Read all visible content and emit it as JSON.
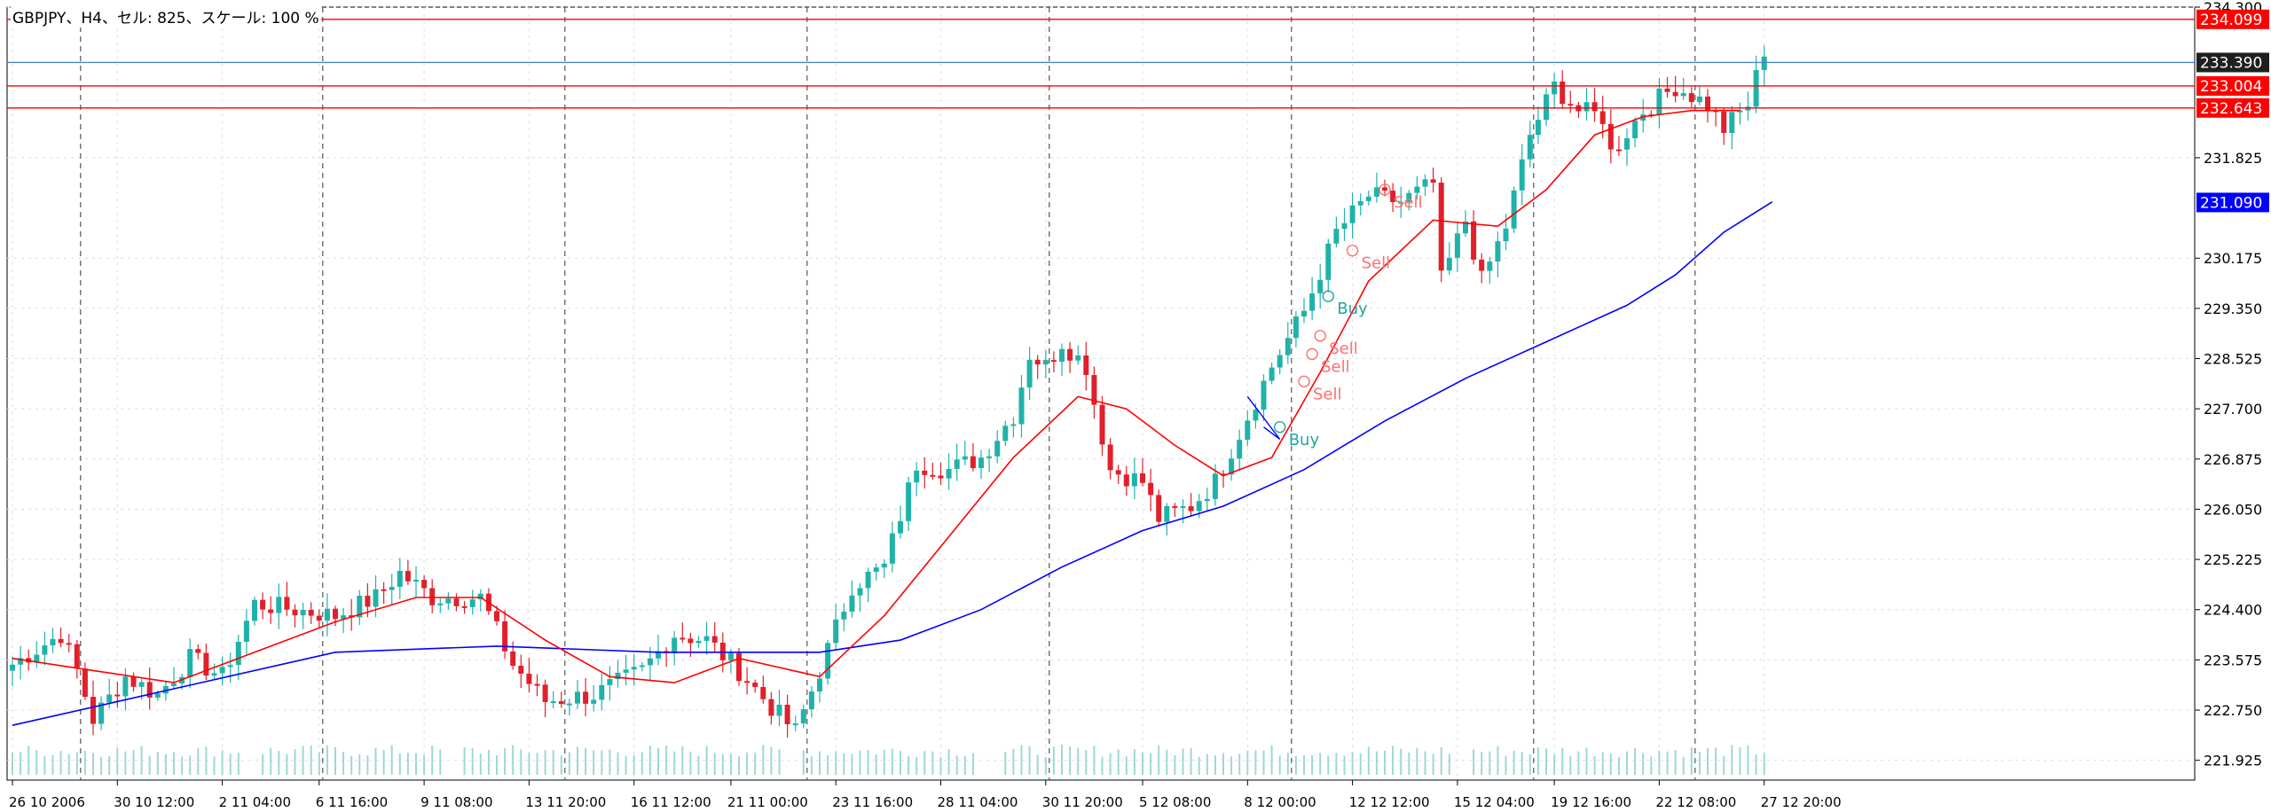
{
  "window": {
    "title": "GBPJPY、H4、セル: 825、スケール: 100 %"
  },
  "colors": {
    "bull": "#20b2aa",
    "bear": "#e0202a",
    "ma_fast": "#ff0000",
    "ma_slow": "#0000ff",
    "hline_red": "#ff0000",
    "hline_blue": "#4a86c8",
    "bid_tag": "#1f1f1f",
    "volume": "#9ed8d2",
    "grid": "#dcdcdc",
    "signal_sell": "#ff6f6f",
    "signal_buy": "#1fa7a0"
  },
  "chart_data": {
    "type": "candlestick",
    "symbol": "GBPJPY",
    "timeframe": "H4",
    "grid": true,
    "ylim": [
      221.6,
      234.3
    ],
    "y_ticks": [
      "234.300",
      "231.825",
      "230.175",
      "229.350",
      "228.525",
      "227.700",
      "226.875",
      "226.050",
      "225.225",
      "224.400",
      "223.575",
      "222.750",
      "221.925"
    ],
    "x_ticks": [
      "26 10 2006",
      "30 10 12:00",
      "2 11 04:00",
      "6 11 16:00",
      "9 11 08:00",
      "13 11 20:00",
      "16 11 12:00",
      "21 11 00:00",
      "23 11 16:00",
      "28 11 04:00",
      "30 11 20:00",
      "5 12 08:00",
      "8 12 00:00",
      "12 12 12:00",
      "15 12 04:00",
      "19 12 16:00",
      "22 12 08:00",
      "27 12 20:00"
    ],
    "horizontal_lines": [
      {
        "label": "234.099",
        "value": 234.099,
        "style": "red"
      },
      {
        "label": "233.390",
        "value": 233.39,
        "style": "bid"
      },
      {
        "label": "233.004",
        "value": 233.004,
        "style": "red"
      },
      {
        "label": "232.643",
        "value": 232.643,
        "style": "red"
      }
    ],
    "ma_label": {
      "label": "231.090",
      "value": 231.09
    },
    "anchors": [
      {
        "i": 0,
        "c": 223.5
      },
      {
        "i": 6,
        "c": 224.0
      },
      {
        "i": 8,
        "c": 223.4
      },
      {
        "i": 10,
        "c": 222.6
      },
      {
        "i": 14,
        "c": 223.3
      },
      {
        "i": 18,
        "c": 223.0
      },
      {
        "i": 22,
        "c": 223.6
      },
      {
        "i": 26,
        "c": 223.3
      },
      {
        "i": 30,
        "c": 224.5
      },
      {
        "i": 40,
        "c": 224.3
      },
      {
        "i": 45,
        "c": 224.6
      },
      {
        "i": 48,
        "c": 225.0
      },
      {
        "i": 52,
        "c": 224.6
      },
      {
        "i": 58,
        "c": 224.6
      },
      {
        "i": 62,
        "c": 223.5
      },
      {
        "i": 66,
        "c": 222.9
      },
      {
        "i": 72,
        "c": 223.0
      },
      {
        "i": 78,
        "c": 223.4
      },
      {
        "i": 82,
        "c": 224.0
      },
      {
        "i": 86,
        "c": 223.9
      },
      {
        "i": 90,
        "c": 223.4
      },
      {
        "i": 94,
        "c": 222.8
      },
      {
        "i": 97,
        "c": 222.4
      },
      {
        "i": 100,
        "c": 223.4
      },
      {
        "i": 104,
        "c": 224.8
      },
      {
        "i": 108,
        "c": 225.1
      },
      {
        "i": 112,
        "c": 226.8
      },
      {
        "i": 116,
        "c": 226.7
      },
      {
        "i": 120,
        "c": 226.9
      },
      {
        "i": 124,
        "c": 227.6
      },
      {
        "i": 126,
        "c": 228.6
      },
      {
        "i": 128,
        "c": 228.4
      },
      {
        "i": 130,
        "c": 228.8
      },
      {
        "i": 133,
        "c": 228.4
      },
      {
        "i": 134,
        "c": 227.8
      },
      {
        "i": 136,
        "c": 226.7
      },
      {
        "i": 140,
        "c": 226.5
      },
      {
        "i": 142,
        "c": 225.9
      },
      {
        "i": 146,
        "c": 226.1
      },
      {
        "i": 149,
        "c": 226.5
      },
      {
        "i": 152,
        "c": 227.3
      },
      {
        "i": 156,
        "c": 228.4
      },
      {
        "i": 160,
        "c": 229.3
      },
      {
        "i": 164,
        "c": 230.6
      },
      {
        "i": 168,
        "c": 231.2
      },
      {
        "i": 172,
        "c": 231.1
      },
      {
        "i": 176,
        "c": 231.4
      },
      {
        "i": 177,
        "c": 229.8
      },
      {
        "i": 180,
        "c": 230.8
      },
      {
        "i": 182,
        "c": 229.8
      },
      {
        "i": 185,
        "c": 230.7
      },
      {
        "i": 188,
        "c": 232.2
      },
      {
        "i": 191,
        "c": 233.0
      },
      {
        "i": 194,
        "c": 232.6
      },
      {
        "i": 197,
        "c": 232.5
      },
      {
        "i": 198,
        "c": 231.9
      },
      {
        "i": 202,
        "c": 232.6
      },
      {
        "i": 206,
        "c": 233.0
      },
      {
        "i": 210,
        "c": 232.7
      },
      {
        "i": 212,
        "c": 232.3
      },
      {
        "i": 215,
        "c": 232.7
      },
      {
        "i": 217,
        "c": 233.6
      }
    ],
    "ma_fast_points": [
      [
        0,
        223.6
      ],
      [
        10,
        223.4
      ],
      [
        20,
        223.2
      ],
      [
        30,
        223.7
      ],
      [
        40,
        224.2
      ],
      [
        50,
        224.6
      ],
      [
        58,
        224.6
      ],
      [
        66,
        223.9
      ],
      [
        74,
        223.3
      ],
      [
        82,
        223.2
      ],
      [
        90,
        223.6
      ],
      [
        100,
        223.3
      ],
      [
        108,
        224.3
      ],
      [
        116,
        225.6
      ],
      [
        124,
        226.9
      ],
      [
        132,
        227.9
      ],
      [
        138,
        227.7
      ],
      [
        144,
        227.1
      ],
      [
        150,
        226.6
      ],
      [
        156,
        226.9
      ],
      [
        162,
        228.3
      ],
      [
        168,
        229.8
      ],
      [
        176,
        230.8
      ],
      [
        184,
        230.7
      ],
      [
        190,
        231.3
      ],
      [
        196,
        232.2
      ],
      [
        202,
        232.5
      ],
      [
        208,
        232.6
      ],
      [
        214,
        232.6
      ]
    ],
    "ma_slow_points": [
      [
        0,
        222.5
      ],
      [
        20,
        223.1
      ],
      [
        40,
        223.7
      ],
      [
        60,
        223.8
      ],
      [
        80,
        223.7
      ],
      [
        100,
        223.7
      ],
      [
        110,
        223.9
      ],
      [
        120,
        224.4
      ],
      [
        130,
        225.1
      ],
      [
        140,
        225.7
      ],
      [
        150,
        226.1
      ],
      [
        160,
        226.7
      ],
      [
        170,
        227.5
      ],
      [
        180,
        228.2
      ],
      [
        190,
        228.8
      ],
      [
        200,
        229.4
      ],
      [
        206,
        229.9
      ],
      [
        212,
        230.6
      ],
      [
        218,
        231.1
      ]
    ],
    "signals": [
      {
        "label": "Buy",
        "type": "buy",
        "i": 157,
        "price": 227.4
      },
      {
        "label": "Sell",
        "type": "sell",
        "i": 160,
        "price": 228.15
      },
      {
        "label": "Sell",
        "type": "sell",
        "i": 161,
        "price": 228.6
      },
      {
        "label": "Sell",
        "type": "sell",
        "i": 162,
        "price": 228.9
      },
      {
        "label": "Buy",
        "type": "buy",
        "i": 163,
        "price": 229.55
      },
      {
        "label": "Sell",
        "type": "sell",
        "i": 166,
        "price": 230.3
      },
      {
        "label": "Sell",
        "type": "sell",
        "i": 170,
        "price": 231.3
      }
    ]
  }
}
